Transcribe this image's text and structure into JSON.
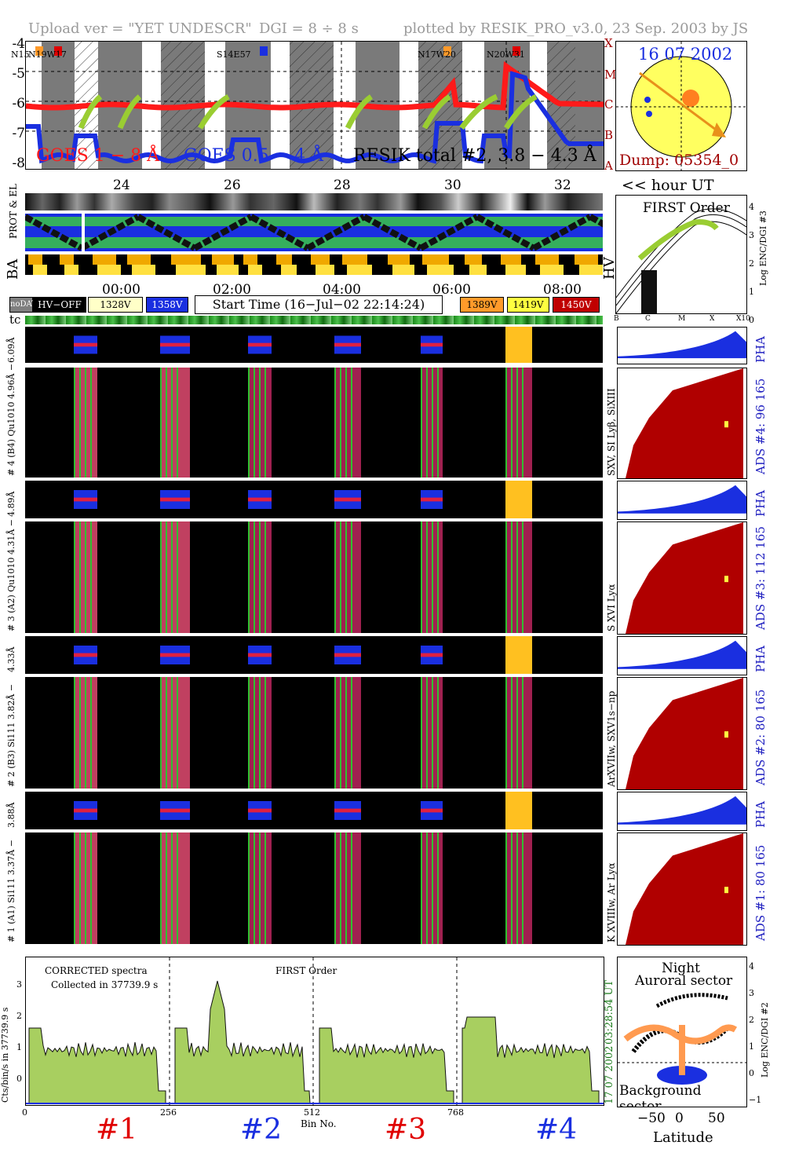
{
  "header": {
    "upload": "Upload ver = \"YET UNDESCR\"",
    "dgi": "DGI =   8 ÷   8 s",
    "plotted": "plotted by RESIK_PRO_v3.0, 23 Sep. 2003 by JS"
  },
  "goes": {
    "ylabels": [
      "-4",
      "-5",
      "-6",
      "-7",
      "-8"
    ],
    "class_labels": [
      "X",
      "M",
      "C",
      "B",
      "A"
    ],
    "flare_labels": [
      "N15",
      "N19W17",
      "S14E57",
      "N17W20",
      "N20W31"
    ],
    "legend_red": "GOES 1 − 8 Å",
    "legend_blue": "GOES 0.5 − 4 Å",
    "legend_resik": "RESIK total #2, 3.8 − 4.3 Å",
    "hour_ticks": [
      "24",
      "26",
      "28",
      "30",
      "32"
    ],
    "hour_unit": "<< hour UT",
    "red_color": "#ff1a1a",
    "blue_color": "#1a2fe0"
  },
  "sun_panel": {
    "date": "16 07 2002",
    "dump": "Dump: 05354_0"
  },
  "status_rows": {
    "label_prot": "PROT & EL",
    "label_ba": "BA",
    "label_hv": "HV"
  },
  "first_order": {
    "title": "FIRST Order",
    "ylabel": "Log ENC/DGI #3",
    "yticks": [
      "4",
      "3",
      "2",
      "1",
      "0"
    ],
    "xticks": [
      "B",
      "C",
      "M",
      "X",
      "X10"
    ]
  },
  "timeline": {
    "ticks": [
      "00:00",
      "02:00",
      "04:00",
      "06:00",
      "08:00"
    ],
    "start_time": "Start Time (16−Jul−02 22:14:24)",
    "tc": "tc"
  },
  "legend_boxes": [
    {
      "label": "noDATA",
      "bg": "#7f7f7f",
      "fg": "#ffffff"
    },
    {
      "label": "HV−OFF",
      "bg": "#000000",
      "fg": "#ffffff"
    },
    {
      "label": "1328V",
      "bg": "#ffffc8",
      "fg": "#000000"
    },
    {
      "label": "1358V",
      "bg": "#1a2fe0",
      "fg": "#ffffff"
    },
    {
      "label": "1389V",
      "bg": "#ff9a2a",
      "fg": "#000000"
    },
    {
      "label": "1419V",
      "bg": "#ffff40",
      "fg": "#000000"
    },
    {
      "label": "1450V",
      "bg": "#c00000",
      "fg": "#ffffff"
    }
  ],
  "channels": [
    {
      "pha_label": "6.09Å",
      "spec_label": "# 4 (B4) Qu1010 4.96Å −",
      "lines": "SXV, SI Lyβ, SiXIII",
      "ads": "ADS #4:   96 165",
      "pha": "PHA"
    },
    {
      "pha_label": "4.89Å",
      "spec_label": "# 3 (A2) Qu1010 4.31Å −",
      "lines": "S XVI Lyα",
      "ads": "ADS #3:   112 165",
      "pha": "PHA"
    },
    {
      "pha_label": "4.33Å",
      "spec_label": "# 2 (B3) Si111 3.82Å −",
      "lines": "ArXVIIw, SXV1s−np",
      "ads": "ADS #2:   80 165",
      "pha": "PHA"
    },
    {
      "pha_label": "3.88Å",
      "spec_label": "# 1 (A1) Si111 3.37Å −",
      "lines": "K XVIIIw, Ar Lyα",
      "ads": "ADS #1:   80 165",
      "pha": "PHA"
    }
  ],
  "spectrum": {
    "text1": "CORRECTED spectra",
    "text2": "Collected in 37739.9 s",
    "order": "FIRST Order",
    "ylabel": "Cts/bin/s in 37739.9 s",
    "yticks": [
      "3",
      "2",
      "1",
      "0"
    ],
    "xticks": [
      "0",
      "256",
      "512",
      "768"
    ],
    "xlabel": "Bin No.",
    "time": "03:28:54 UT",
    "date": "17 07 2002",
    "channels": [
      "#1",
      "#2",
      "#3",
      "#4"
    ],
    "channel_colors": [
      "#e00000",
      "#1a2fe0",
      "#e00000",
      "#1a2fe0"
    ]
  },
  "latitude": {
    "night": "Night",
    "auroral": "Auroral sector",
    "background": "Background sector",
    "xlabel": "Latitude",
    "xticks": [
      "−50",
      "0",
      "50"
    ],
    "yticks": [
      "4",
      "3",
      "2",
      "1",
      "0",
      "−1"
    ],
    "ylabel": "Log ENC/DGI #2"
  }
}
